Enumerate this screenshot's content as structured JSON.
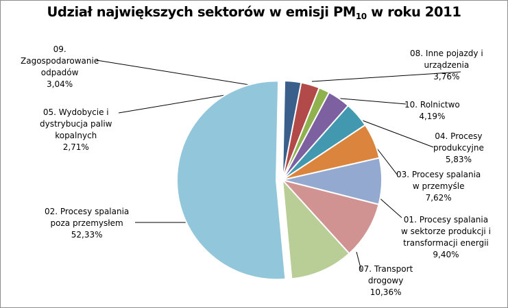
{
  "chart_data": {
    "type": "pie",
    "title": {
      "main": "Udział największych sektorów w emisji PM",
      "subscript": "10",
      "suffix": " w roku 2011"
    },
    "slices": [
      {
        "key": "s08",
        "lines": [
          "08. Inne pojazdy i",
          "urządzenia"
        ],
        "value_label": "3,76%",
        "value": 3.76,
        "color": "#7d60a0"
      },
      {
        "key": "s10",
        "lines": [
          "10. Rolnictwo"
        ],
        "value_label": "4,19%",
        "value": 4.19,
        "color": "#4198af"
      },
      {
        "key": "s04",
        "lines": [
          "04. Procesy",
          "produkcyjne"
        ],
        "value_label": "5,83%",
        "value": 5.83,
        "color": "#db843d"
      },
      {
        "key": "s03",
        "lines": [
          "03. Procesy spalania",
          "w przemyśle"
        ],
        "value_label": "7,62%",
        "value": 7.62,
        "color": "#93a9cf"
      },
      {
        "key": "s01",
        "lines": [
          "01. Procesy spalania",
          "w sektorze produkcji i",
          "transformacji energii"
        ],
        "value_label": "9,40%",
        "value": 9.4,
        "color": "#d19392"
      },
      {
        "key": "s07",
        "lines": [
          "07. Transport",
          "drogowy"
        ],
        "value_label": "10,36%",
        "value": 10.36,
        "color": "#b9cd96"
      },
      {
        "key": "s02",
        "lines": [
          "02. Procesy spalania",
          "poza przemysłem"
        ],
        "value_label": "52,33%",
        "value": 52.33,
        "color": "#92c6da",
        "exploded": true
      },
      {
        "key": "s05",
        "lines": [
          "05. Wydobycie i",
          "dystrybucja paliw",
          "kopalnych"
        ],
        "value_label": "2,71%",
        "value": 2.71,
        "color": "#3a5f8a"
      },
      {
        "key": "s09",
        "lines": [
          "09.",
          "Zagospodarowanie",
          "odpadów"
        ],
        "value_label": "3,04%",
        "value": 3.04,
        "color": "#b14a48"
      },
      {
        "key": "s_unlabeled",
        "lines": [],
        "value_label": "",
        "value": 1.76,
        "color": "#8fb24f"
      }
    ]
  }
}
